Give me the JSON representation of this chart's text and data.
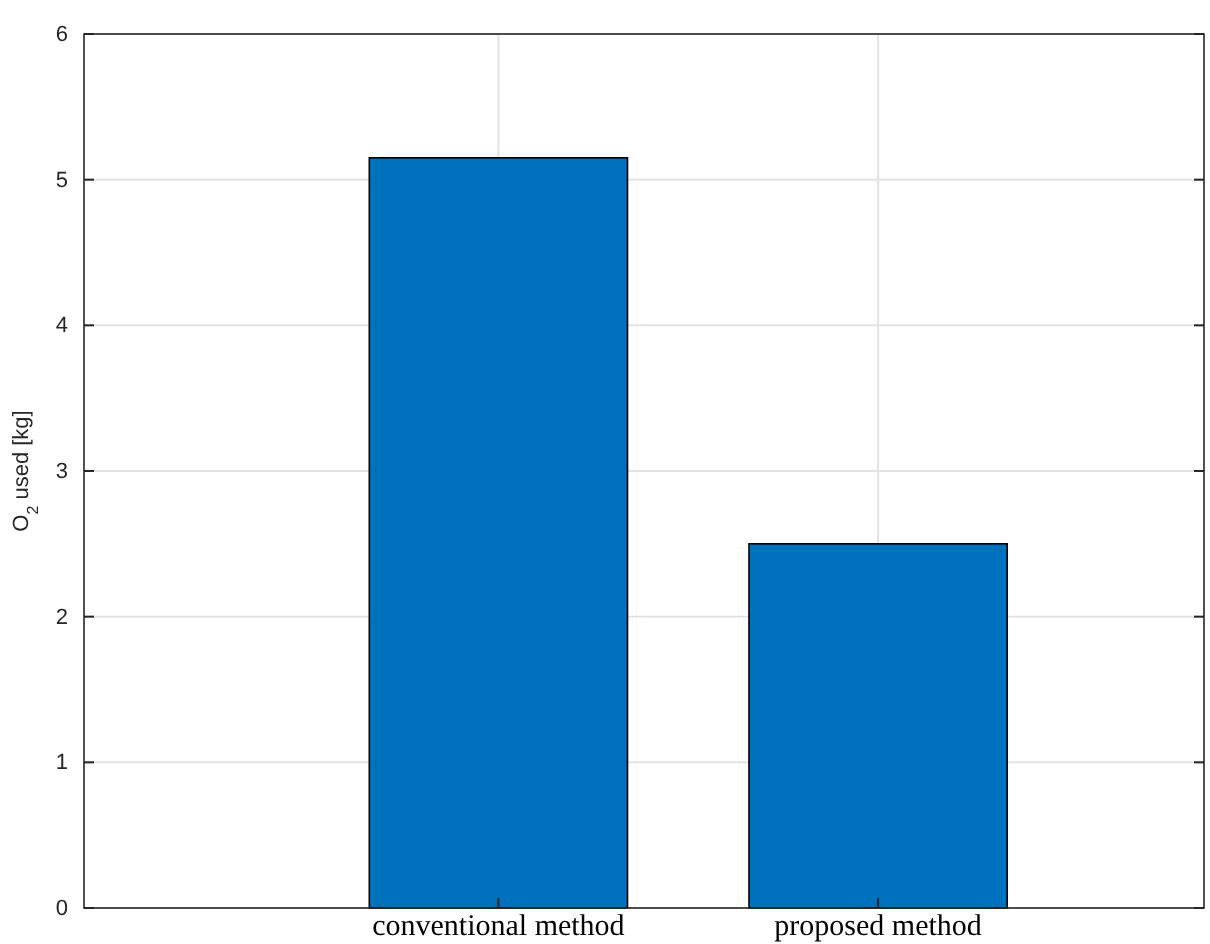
{
  "chart_data": {
    "type": "bar",
    "categories": [
      "conventional method",
      "proposed method"
    ],
    "values": [
      5.15,
      2.5
    ],
    "color": "#0072bd",
    "ylabel": "O$_{2}$ used [kg]",
    "ylim": [
      0,
      6
    ],
    "yticks": [
      0,
      1,
      2,
      3,
      4,
      5,
      6
    ],
    "grid": true
  }
}
